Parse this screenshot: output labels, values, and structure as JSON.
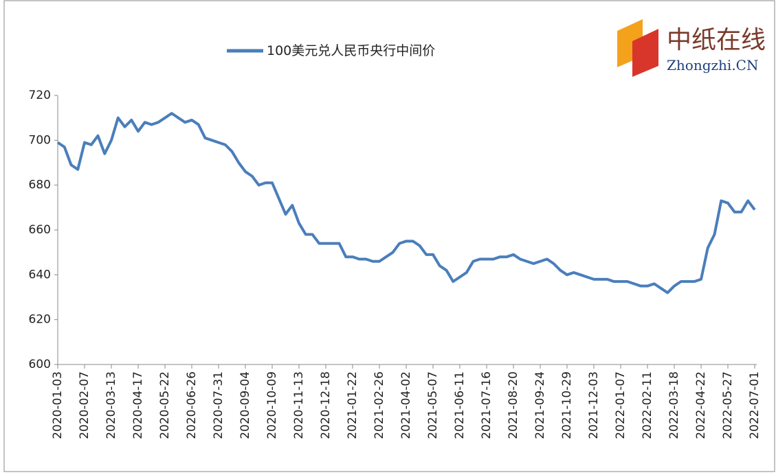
{
  "chart_data": {
    "type": "line",
    "legend": "100美元兑人民币央行中间价",
    "logo": {
      "name": "中纸在线",
      "domain": "Zhongzhi.CN"
    },
    "categories": [
      "2020-01-03",
      null,
      null,
      null,
      "2020-02-07",
      null,
      null,
      null,
      "2020-03-13",
      null,
      null,
      null,
      "2020-04-17",
      null,
      null,
      null,
      "2020-05-22",
      null,
      null,
      null,
      "2020-06-26",
      null,
      null,
      null,
      "2020-07-31",
      null,
      null,
      null,
      "2020-09-04",
      null,
      null,
      null,
      "2020-10-09",
      null,
      null,
      null,
      "2020-11-13",
      null,
      null,
      null,
      "2020-12-18",
      null,
      null,
      null,
      "2021-01-22",
      null,
      null,
      null,
      "2021-02-26",
      null,
      null,
      null,
      "2021-04-02",
      null,
      null,
      null,
      "2021-05-07",
      null,
      null,
      null,
      "2021-06-11",
      null,
      null,
      null,
      "2021-07-16",
      null,
      null,
      null,
      "2021-08-20",
      null,
      null,
      null,
      "2021-09-24",
      null,
      null,
      null,
      "2021-10-29",
      null,
      null,
      null,
      "2021-12-03",
      null,
      null,
      null,
      "2022-01-07",
      null,
      null,
      null,
      "2022-02-11",
      null,
      null,
      null,
      "2022-03-18",
      null,
      null,
      null,
      "2022-04-22",
      null,
      null,
      null,
      "2022-05-27",
      null,
      null,
      null,
      "2022-07-01"
    ],
    "series": [
      {
        "name": "100美元兑人民币央行中间价",
        "color": "#4a7ebb",
        "values": [
          699,
          697,
          689,
          687,
          699,
          698,
          702,
          694,
          700,
          710,
          706,
          709,
          704,
          708,
          707,
          708,
          710,
          712,
          710,
          708,
          709,
          707,
          701,
          700,
          699,
          698,
          695,
          690,
          686,
          684,
          680,
          681,
          681,
          674,
          667,
          671,
          663,
          658,
          658,
          654,
          654,
          654,
          654,
          648,
          648,
          647,
          647,
          646,
          646,
          648,
          650,
          654,
          655,
          655,
          653,
          649,
          649,
          644,
          642,
          637,
          639,
          641,
          646,
          647,
          647,
          647,
          648,
          648,
          649,
          647,
          646,
          645,
          646,
          647,
          645,
          642,
          640,
          641,
          640,
          639,
          638,
          638,
          638,
          637,
          637,
          637,
          636,
          635,
          635,
          636,
          634,
          632,
          635,
          637,
          637,
          637,
          638,
          652,
          658,
          673,
          672,
          668,
          668,
          673,
          669
        ]
      }
    ],
    "ylim": [
      600,
      720
    ],
    "yticks": [
      600,
      620,
      640,
      660,
      680,
      700,
      720
    ],
    "grid": false
  }
}
